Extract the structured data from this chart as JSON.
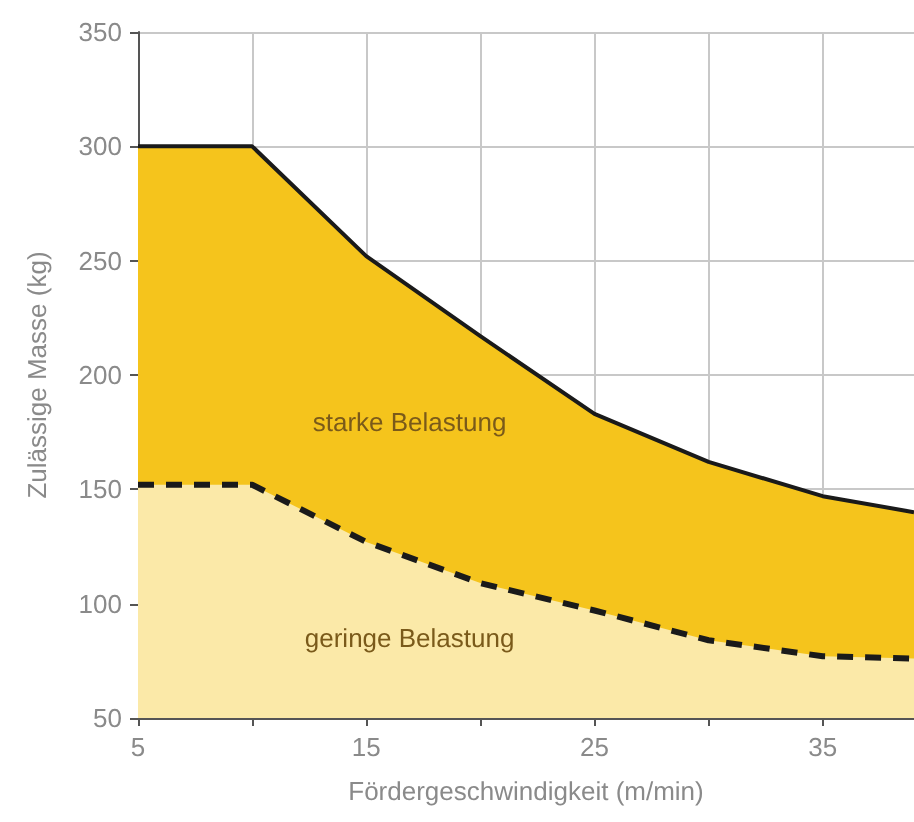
{
  "chart_data": {
    "type": "area",
    "xlabel": "Fördergeschwindigkeit (m/min)",
    "ylabel": "Zulässige Masse (kg)",
    "x": [
      5,
      10,
      15,
      20,
      25,
      30,
      35,
      39
    ],
    "series": [
      {
        "name": "starke Belastung",
        "color": "#f5c41c",
        "line_style": "solid",
        "values": [
          300,
          300,
          252,
          217,
          183,
          162,
          147,
          140
        ]
      },
      {
        "name": "geringe Belastung",
        "color": "#fbe9a8",
        "line_style": "dashed",
        "values": [
          152,
          152,
          127,
          109,
          97,
          84,
          77,
          76
        ]
      }
    ],
    "xlim": [
      5,
      39
    ],
    "xticks": [
      5,
      {
        "value": 10,
        "label": null
      },
      15,
      {
        "value": 20,
        "label": null
      },
      25,
      {
        "value": 30,
        "label": null
      },
      35
    ],
    "ylim": [
      50,
      350
    ],
    "yticks": [
      50,
      100,
      150,
      200,
      250,
      300,
      350
    ],
    "grid": true,
    "marker": "none"
  }
}
